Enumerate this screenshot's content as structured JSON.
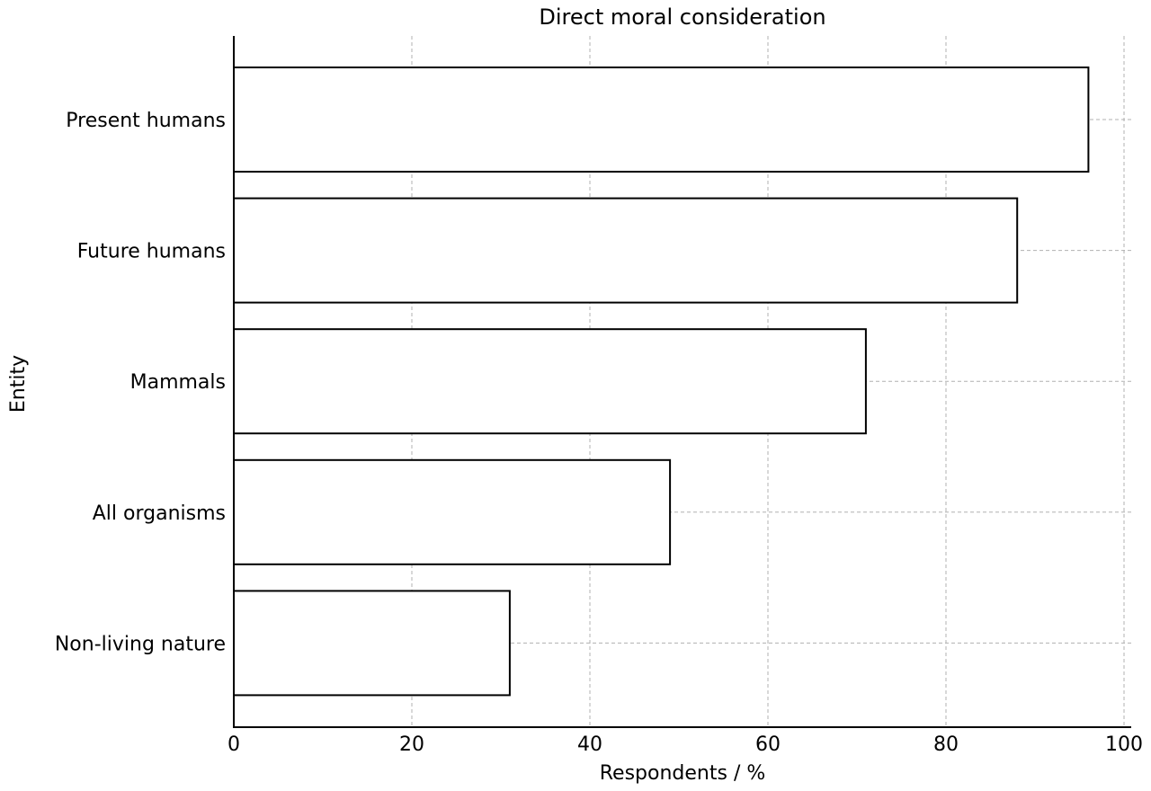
{
  "chart_data": {
    "type": "bar",
    "orientation": "horizontal",
    "title": "Direct moral consideration",
    "xlabel": "Respondents / %",
    "ylabel": "Entity",
    "categories": [
      "Present humans",
      "Future humans",
      "Mammals",
      "All organisms",
      "Non-living nature"
    ],
    "values": [
      96,
      88,
      71,
      49,
      31
    ],
    "xlim": [
      0,
      100
    ],
    "xticks": [
      0,
      20,
      40,
      60,
      80,
      100
    ],
    "grid": true,
    "colors": {
      "bar_fill": "#ffffff",
      "bar_edge": "#000000",
      "grid": "#b0b0b0"
    }
  }
}
